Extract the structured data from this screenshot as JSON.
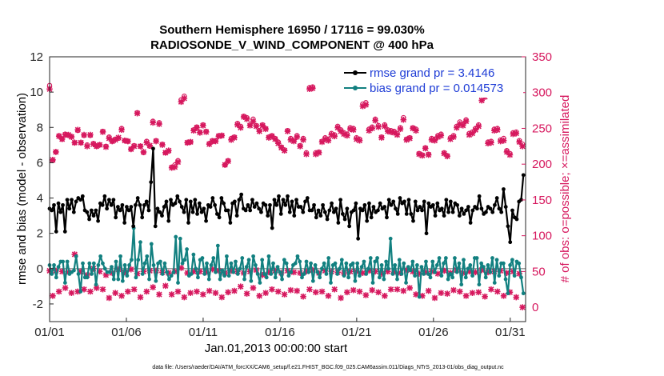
{
  "chart_data": {
    "type": "line",
    "title_lines": [
      "Southern Hemisphere 16950 / 17116 = 99.030%",
      "RADIOSONDE_V_WIND_COMPONENT @ 400 hPa"
    ],
    "xlabel": "Jan.01,2013 00:00:00 start",
    "ylabel_left": "rmse and bias (model - observation)",
    "ylabel_right": "# of obs: o=possible; ×=assimilated",
    "x_ticks": [
      "01/01",
      "01/06",
      "01/11",
      "01/16",
      "01/21",
      "01/26",
      "01/31"
    ],
    "x_tick_days": [
      0,
      5,
      10,
      15,
      20,
      25,
      30
    ],
    "xlim": [
      0,
      31
    ],
    "ylim_left": [
      -3,
      12
    ],
    "yticks_left": [
      "-2",
      "0",
      "2",
      "4",
      "6",
      "8",
      "10",
      "12"
    ],
    "ylim_right": [
      -20,
      350
    ],
    "yticks_right": [
      "0",
      "50",
      "100",
      "150",
      "200",
      "250",
      "300",
      "350"
    ],
    "legend": [
      {
        "label": "rmse grand pr = 3.4146",
        "color": "#000000"
      },
      {
        "label": "bias grand pr = 0.014573",
        "color": "#128080"
      }
    ],
    "colors": {
      "rmse": "#000000",
      "bias": "#128080",
      "obs": "#d6185e",
      "zero_line": "#a0a0a0",
      "text_blue": "#1f3dd6"
    },
    "footnote": "data file: /Users/raeder/DAI/ATM_forcXX/CAM6_setup/f.e21.FHIST_BGC.f09_025.CAM6assim.011/Diags_NTrS_2013-01/obs_diag_output.nc",
    "series": [
      {
        "name": "rmse",
        "values": [
          3.4,
          3.3,
          3.6,
          2.1,
          3.7,
          3.2,
          3.6,
          2.1,
          3.9,
          3.4,
          3.9,
          3.2,
          3.8,
          4.0,
          3.9,
          4.1,
          3.3,
          3.2,
          2.8,
          3.3,
          3.0,
          3.3,
          2.7,
          3.7,
          3.6,
          4.1,
          3.4,
          3.9,
          3.6,
          3.9,
          2.9,
          3.5,
          3.3,
          3.6,
          2.6,
          3.5,
          3.3,
          3.5,
          2.4,
          3.6,
          4.0,
          3.6,
          2.9,
          3.6,
          3.8,
          3.3,
          4.9,
          6.8,
          2.4,
          3.4,
          3.2,
          3.0,
          3.5,
          3.8,
          2.7,
          3.9,
          3.6,
          3.7,
          4.1,
          3.8,
          3.5,
          3.2,
          3.9,
          2.6,
          3.8,
          3.2,
          3.9,
          3.1,
          3.7,
          3.2,
          3.4,
          2.7,
          3.6,
          3.5,
          4.0,
          3.6,
          3.1,
          2.9,
          4.0,
          3.7,
          3.3,
          3.3,
          2.6,
          3.7,
          3.8,
          3.0,
          3.9,
          4.2,
          3.4,
          3.3,
          3.6,
          3.3,
          3.9,
          3.5,
          3.7,
          3.4,
          3.2,
          3.7,
          3.6,
          3.0,
          3.6,
          2.3,
          3.9,
          3.6,
          4.1,
          3.1,
          3.9,
          3.6,
          4.1,
          3.2,
          3.8,
          3.0,
          3.9,
          3.5,
          3.5,
          3.2,
          3.8,
          4.0,
          3.3,
          3.3,
          3.6,
          2.9,
          3.3,
          3.0,
          3.6,
          3.2,
          2.8,
          3.3,
          3.7,
          3.2,
          3.4,
          2.6,
          3.9,
          3.1,
          2.8,
          3.4,
          2.4,
          3.2,
          3.3,
          3.7,
          1.7,
          3.4,
          3.3,
          3.6,
          2.7,
          3.7,
          2.9,
          3.5,
          3.2,
          3.3,
          3.7,
          3.4,
          3.5,
          2.9,
          3.9,
          3.6,
          3.8,
          3.4,
          3.1,
          4.0,
          3.7,
          3.8,
          3.1,
          3.9,
          3.1,
          2.7,
          3.8,
          3.3,
          3.5,
          3.3,
          3.8,
          2.0,
          3.7,
          3.5,
          3.6,
          3.0,
          3.7,
          3.3,
          3.4,
          3.0,
          3.9,
          3.2,
          3.8,
          3.2,
          3.7,
          3.6,
          3.0,
          3.4,
          3.1,
          3.3,
          3.5,
          2.6,
          3.3,
          3.5,
          3.4,
          4.1,
          3.4,
          3.1,
          3.2,
          3.5,
          3.4,
          3.2,
          3.6,
          4.0,
          3.4,
          3.2,
          4.5,
          3.5,
          2.4,
          1.5,
          3.3,
          2.9,
          2.8,
          3.8,
          3.9,
          5.3
        ]
      },
      {
        "name": "bias",
        "values": [
          0.2,
          -0.3,
          0.2,
          -0.5,
          0.1,
          0.4,
          0.4,
          -0.8,
          0.4,
          -0.3,
          -0.2,
          -0.1,
          0.7,
          -0.3,
          -1.3,
          0.3,
          -0.5,
          -0.5,
          0.3,
          -0.3,
          0.3,
          -0.9,
          0.2,
          0.7,
          0.3,
          0.0,
          -0.2,
          -0.2,
          0.1,
          -0.6,
          0.4,
          -0.6,
          0.7,
          -0.7,
          0.2,
          -0.4,
          0.2,
          0.5,
          2.3,
          -0.5,
          0.5,
          1.5,
          -0.3,
          0.3,
          0.7,
          -0.6,
          1.4,
          0.2,
          -0.7,
          0.3,
          0.4,
          -0.3,
          0.3,
          -0.2,
          -0.6,
          -0.4,
          -0.2,
          1.8,
          -0.8,
          1.7,
          0.3,
          0.5,
          1.1,
          -0.4,
          -0.3,
          0.8,
          0.0,
          -0.5,
          0.5,
          0.6,
          -0.3,
          0.3,
          -0.6,
          0.2,
          0.6,
          -0.2,
          1.3,
          -0.6,
          -0.1,
          -0.4,
          0.7,
          -0.4,
          0.3,
          -0.2,
          0.4,
          -0.3,
          0.0,
          0.6,
          -0.6,
          0.1,
          0.5,
          -0.7,
          0.7,
          0.2,
          -0.3,
          -0.8,
          0.5,
          -0.3,
          -0.5,
          0.7,
          -0.3,
          0.3,
          -0.5,
          0.1,
          -0.2,
          -0.6,
          0.5,
          0.3,
          -0.4,
          -0.2,
          0.2,
          0.3,
          0.7,
          0.4,
          -0.5,
          -0.3,
          0.4,
          -0.2,
          0.3,
          -0.7,
          0.2,
          -0.2,
          -0.5,
          0.0,
          0.3,
          -0.3,
          0.6,
          -0.8,
          0.2,
          0.3,
          -0.3,
          0.0,
          0.5,
          -0.4,
          0.3,
          -0.5,
          0.2,
          0.3,
          -0.7,
          0.3,
          -0.4,
          0.1,
          0.4,
          -0.3,
          0.0,
          0.6,
          -0.8,
          0.4,
          0.6,
          -0.5,
          0.2,
          -0.6,
          0.4,
          0.0,
          1.7,
          -0.3,
          0.2,
          -0.6,
          0.5,
          -0.3,
          0.3,
          -0.8,
          0.1,
          -0.1,
          0.4,
          -0.4,
          0.2,
          -1.6,
          0.1,
          -0.3,
          0.4,
          -0.3,
          -0.5,
          0.4,
          -0.2,
          0.2,
          0.6,
          -0.4,
          0.3,
          0.6,
          -0.6,
          -0.3,
          -0.5,
          0.6,
          -0.2,
          0.3,
          -0.9,
          0.5,
          -0.5,
          0.0,
          0.2,
          -0.4,
          0.6,
          0.6,
          -0.9,
          0.3,
          0.1,
          -0.5,
          0.2,
          -0.2,
          0.6,
          -0.8,
          0.5,
          -0.4,
          0.3,
          0.3,
          -0.6,
          -1.4,
          0.2,
          0.5,
          -0.4,
          0.4,
          0.3,
          -0.5,
          -1.4
        ]
      },
      {
        "name": "obs_possible",
        "values": [
          310,
          205,
          217,
          240,
          235,
          242,
          240,
          239,
          230,
          247,
          230,
          240,
          227,
          240,
          229,
          225,
          227,
          246,
          225,
          238,
          232,
          235,
          236,
          250,
          233,
          232,
          221,
          226,
          272,
          225,
          216,
          232,
          225,
          260,
          233,
          258,
          228,
          216,
          218,
          196,
          199,
          205,
          290,
          295,
          230,
          231,
          248,
          252,
          245,
          255,
          246,
          229,
          233,
          233,
          240,
          240,
          199,
          205,
          236,
          238,
          257,
          253,
          267,
          265,
          255,
          263,
          254,
          247,
          255,
          250,
          238,
          240,
          236,
          231,
          224,
          220,
          247,
          236,
          233,
          240,
          226,
          236,
          216,
          307,
          308,
          216,
          217,
          232,
          237,
          235,
          243,
          241,
          253,
          248,
          244,
          242,
          251,
          250,
          237,
          235,
          284,
          286,
          249,
          252,
          263,
          254,
          238,
          255,
          248,
          247,
          246,
          243,
          251,
          265,
          235,
          237,
          251,
          249,
          215,
          213,
          223,
          214,
          236,
          235,
          240,
          242,
          216,
          212,
          237,
          240,
          253,
          259,
          256,
          262,
          243,
          245,
          250,
          255,
          292,
          297,
          231,
          232,
          249,
          250,
          234,
          236,
          219,
          215,
          244,
          245,
          233,
          228
        ]
      },
      {
        "name": "obs_assimilated",
        "values": [
          305,
          206,
          217,
          239,
          235,
          241,
          241,
          238,
          230,
          248,
          230,
          241,
          225,
          241,
          228,
          225,
          227,
          245,
          224,
          236,
          232,
          234,
          237,
          248,
          233,
          232,
          221,
          225,
          271,
          225,
          217,
          230,
          226,
          258,
          232,
          256,
          227,
          216,
          219,
          195,
          196,
          203,
          287,
          292,
          230,
          231,
          247,
          251,
          244,
          254,
          245,
          228,
          232,
          232,
          239,
          240,
          199,
          204,
          234,
          237,
          255,
          251,
          266,
          263,
          254,
          260,
          253,
          246,
          254,
          249,
          237,
          239,
          235,
          229,
          223,
          219,
          246,
          234,
          232,
          238,
          225,
          234,
          214,
          305,
          306,
          214,
          216,
          231,
          235,
          233,
          241,
          239,
          251,
          246,
          242,
          240,
          249,
          248,
          235,
          233,
          281,
          283,
          247,
          250,
          261,
          252,
          237,
          253,
          246,
          245,
          244,
          241,
          249,
          262,
          234,
          236,
          250,
          247,
          214,
          212,
          222,
          213,
          234,
          233,
          238,
          240,
          215,
          211,
          235,
          238,
          251,
          256,
          254,
          260,
          241,
          243,
          248,
          253,
          289,
          294,
          229,
          230,
          247,
          248,
          232,
          233,
          217,
          213,
          242,
          243,
          231,
          225
        ]
      },
      {
        "name": "obs_possible_low",
        "values": [
          51,
          16,
          51,
          22,
          50,
          27,
          49,
          20,
          74,
          22,
          50,
          25,
          45,
          22,
          54,
          27,
          50,
          25,
          45,
          13,
          48,
          20,
          53,
          16,
          49,
          22,
          53,
          25,
          47,
          14,
          50,
          22,
          51,
          28,
          51,
          18,
          49,
          30,
          48,
          18,
          50,
          22,
          55,
          14,
          48,
          20,
          50,
          22,
          50,
          18,
          49,
          23,
          53,
          20,
          51,
          14,
          48,
          21,
          51,
          23,
          50,
          29,
          48,
          19,
          50,
          27,
          52,
          16,
          45,
          20,
          49,
          25,
          51,
          22,
          48,
          18,
          51,
          24,
          49,
          23,
          48,
          15,
          50,
          25,
          52,
          21,
          48,
          22,
          51,
          16,
          50,
          25,
          49,
          13,
          48,
          21,
          50,
          24,
          50,
          22,
          48,
          17,
          51,
          24,
          50,
          21,
          47,
          16,
          50,
          25,
          49,
          25,
          48,
          23,
          52,
          27,
          50,
          18,
          47,
          16,
          49,
          23,
          50,
          13,
          47,
          20,
          51,
          19,
          48,
          24,
          52,
          22,
          48,
          16,
          50,
          20,
          49,
          21,
          52,
          15,
          49,
          25,
          50,
          22,
          51,
          16,
          48,
          21,
          50,
          14,
          47,
          0
        ]
      }
    ]
  }
}
